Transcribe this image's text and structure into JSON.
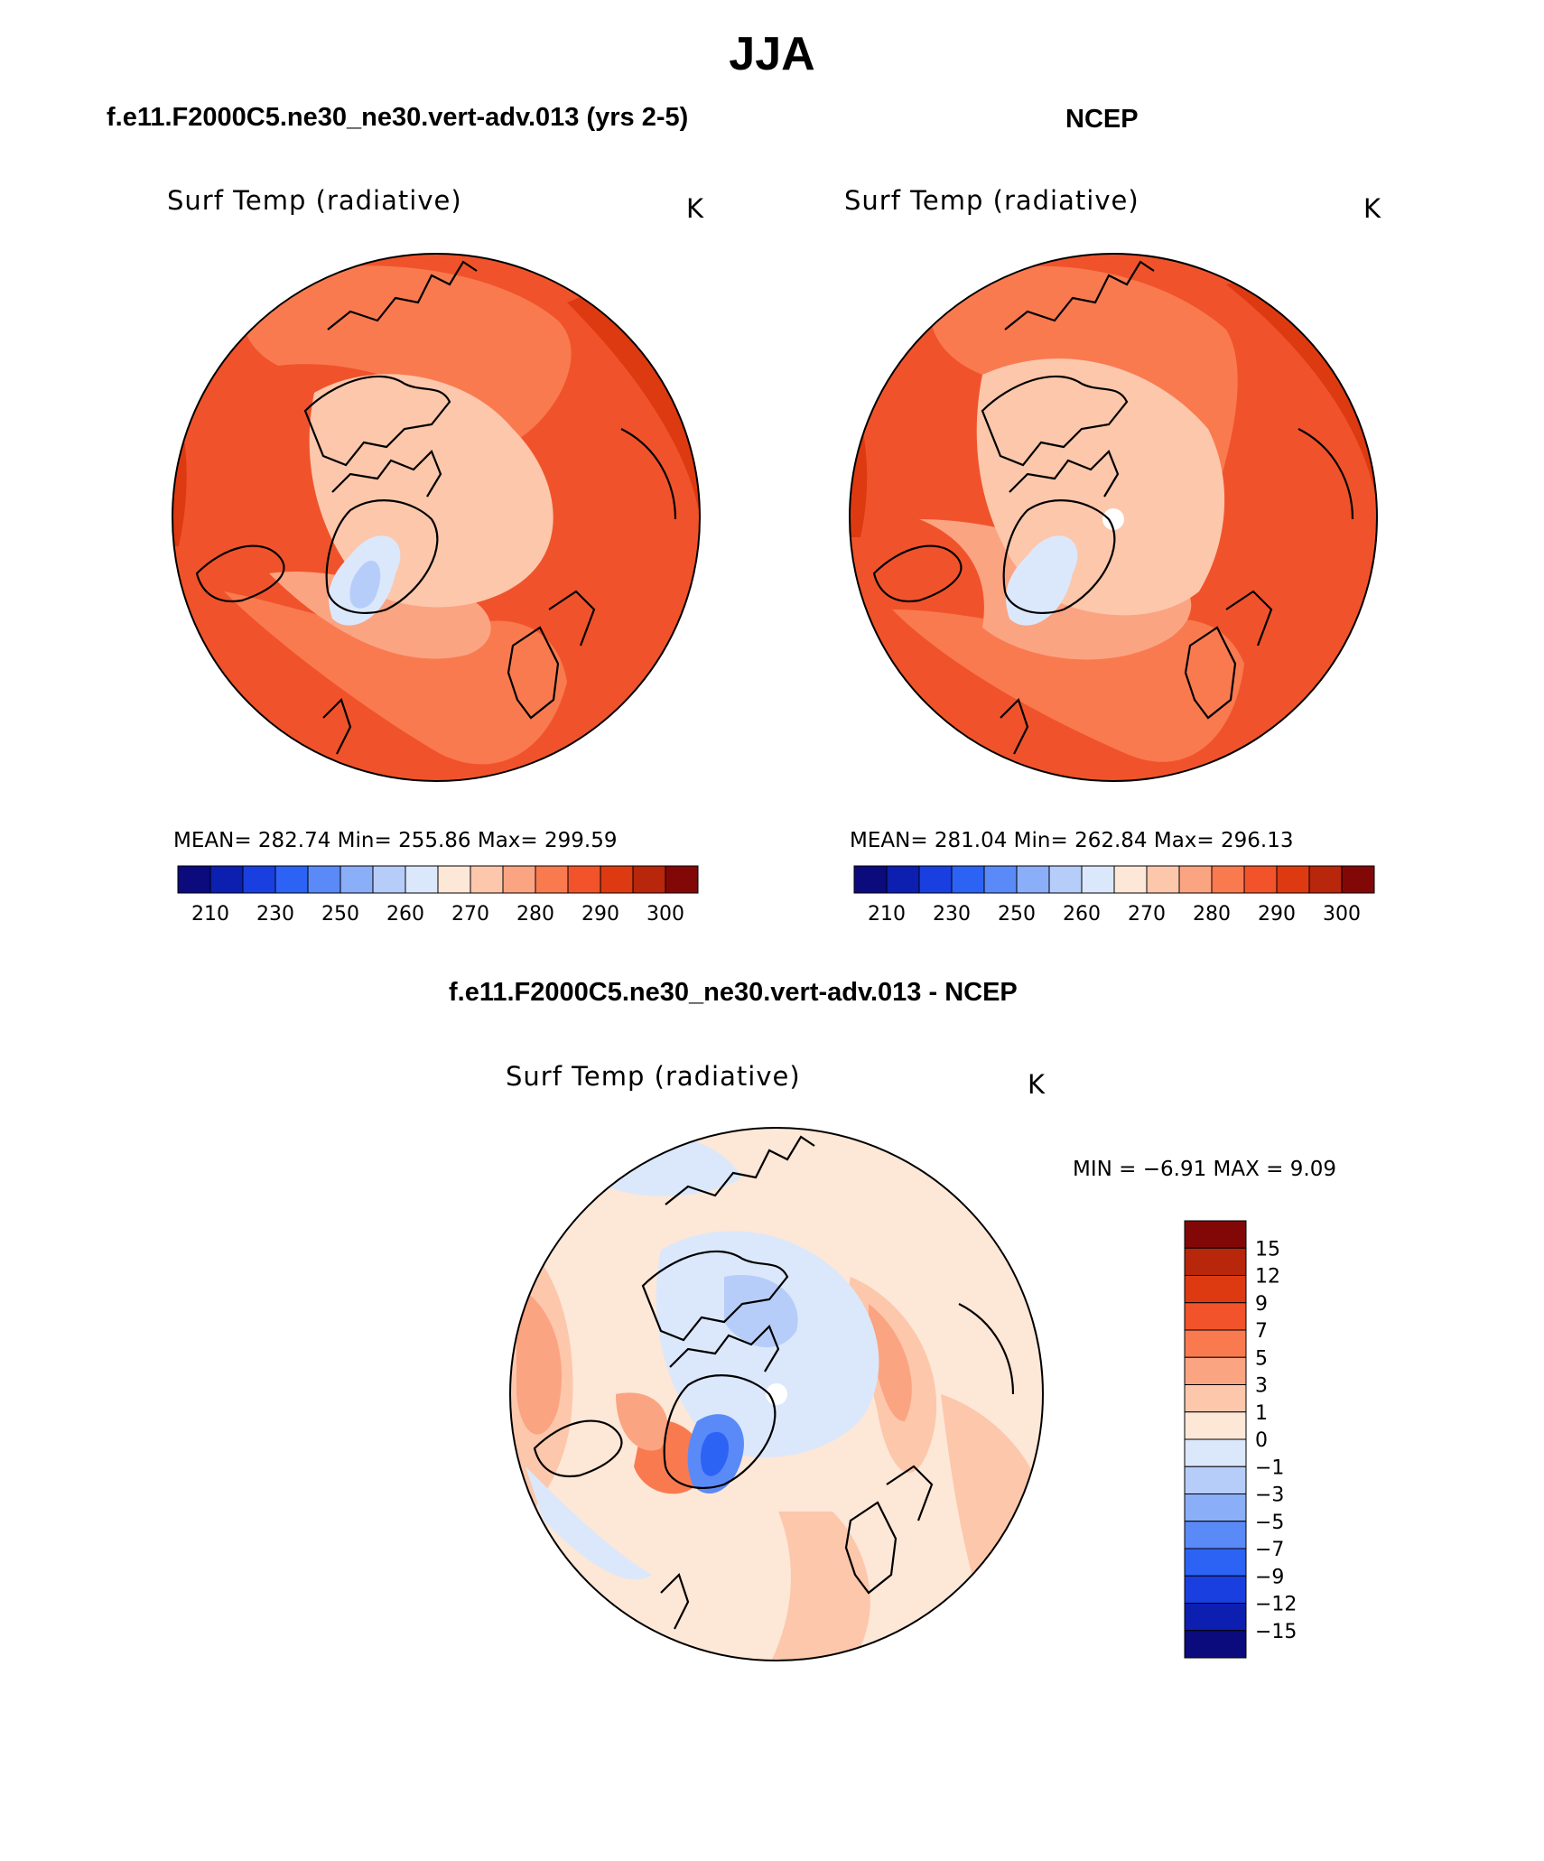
{
  "header": {
    "title": "JJA",
    "left_title": "f.e11.F2000C5.ne30_ne30.vert-adv.013 (yrs 2-5)",
    "right_title": "NCEP",
    "diff_title": "f.e11.F2000C5.ne30_ne30.vert-adv.013 - NCEP"
  },
  "panels": {
    "model": {
      "variable": "Surf Temp (radiative)",
      "units": "K",
      "stats": "MEAN= 282.74   Min= 255.86   Max= 299.59",
      "mean": 282.74,
      "min": 255.86,
      "max": 299.59
    },
    "ncep": {
      "variable": "Surf Temp (radiative)",
      "units": "K",
      "stats": "MEAN= 281.04   Min= 262.84   Max= 296.13",
      "mean": 281.04,
      "min": 262.84,
      "max": 296.13
    },
    "diff": {
      "variable": "Surf Temp (radiative)",
      "units": "K",
      "stats": "MIN =   −6.91  MAX =     9.09",
      "min": -6.91,
      "max": 9.09
    }
  },
  "temp_colorbar": {
    "colors": [
      "#0b0b7e",
      "#0c1fb0",
      "#1a3fe0",
      "#2d63f5",
      "#5a8af7",
      "#8aaef8",
      "#b6cdf9",
      "#dbe8fb",
      "#fde7d7",
      "#fcc7ab",
      "#fba482",
      "#fa7a50",
      "#f2532a",
      "#dd3a12",
      "#b8260c",
      "#820808"
    ],
    "labels": [
      "210",
      "230",
      "250",
      "260",
      "270",
      "280",
      "290",
      "300"
    ]
  },
  "diff_colorbar": {
    "colors": [
      "#820808",
      "#b8260c",
      "#dd3a12",
      "#f2532a",
      "#fa7a50",
      "#fba482",
      "#fcc7ab",
      "#fde7d7",
      "#dbe8fb",
      "#b6cdf9",
      "#8aaef8",
      "#5a8af7",
      "#2d63f5",
      "#1a3fe0",
      "#0c1fb0",
      "#0b0b7e"
    ],
    "labels": [
      "15",
      "12",
      "9",
      "7",
      "5",
      "3",
      "1",
      "0",
      "−1",
      "−3",
      "−5",
      "−7",
      "−9",
      "−12",
      "−15"
    ]
  },
  "map_colors": {
    "hot": "#f0532b",
    "hotter": "#dd3a12",
    "warm": "#fa7a50",
    "mild": "#fba482",
    "cool": "#fcc7ab",
    "ice": "#dbe8fb",
    "ice2": "#b6cdf9",
    "diff_base": "#fde7d7",
    "diff_pos1": "#fcc7ab",
    "diff_pos2": "#fba482",
    "diff_pos3": "#fa7a50",
    "diff_neg1": "#dbe8fb",
    "diff_neg2": "#b6cdf9",
    "diff_neg3": "#5a8af7",
    "diff_neg4": "#2d63f5"
  }
}
